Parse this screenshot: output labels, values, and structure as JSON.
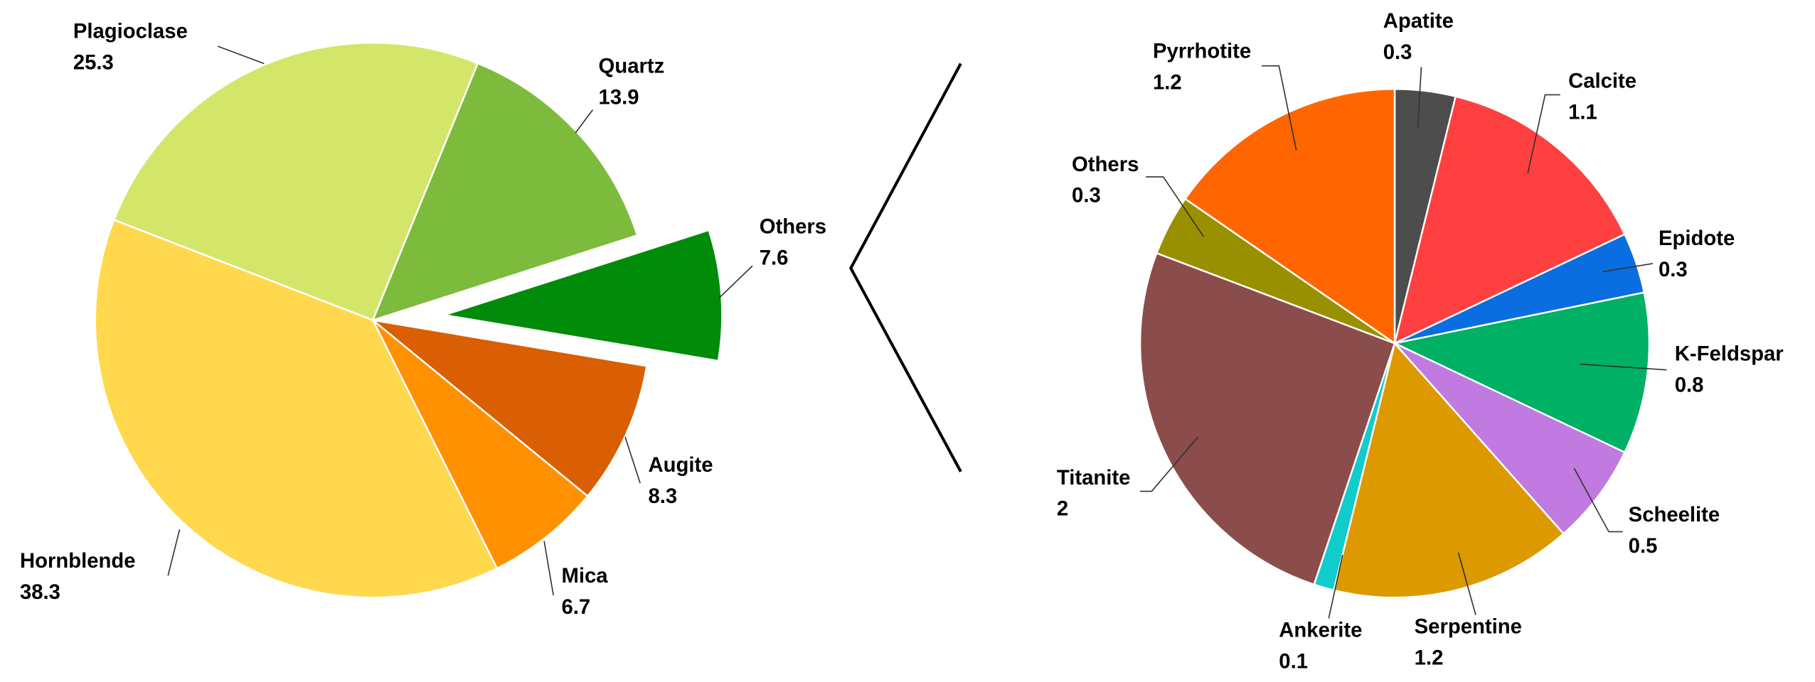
{
  "chart_data": [
    {
      "type": "pie",
      "categories": [
        "Plagioclase",
        "Quartz",
        "Others",
        "Augite",
        "Mica",
        "Hornblende"
      ],
      "values": [
        25.3,
        13.9,
        7.6,
        8.3,
        6.7,
        38.3
      ],
      "colors": [
        "#d4e66a",
        "#7dbb3c",
        "#008c0a",
        "#d95f02",
        "#ff9100",
        "#ffd84d"
      ]
    },
    {
      "type": "pie",
      "categories": [
        "Apatite",
        "Calcite",
        "Epidote",
        "K-Feldspar",
        "Scheelite",
        "Serpentine",
        "Ankerite",
        "Titanite",
        "Others",
        "Pyrrhotite"
      ],
      "values": [
        0.3,
        1.1,
        0.3,
        0.8,
        0.5,
        1.2,
        0.1,
        2,
        0.3,
        1.2
      ],
      "colors": [
        "#4d4d4d",
        "#ff4040",
        "#0a6ee0",
        "#00b064",
        "#c07ae0",
        "#dd9900",
        "#10cccc",
        "#8b4c4c",
        "#999000",
        "#ff6600"
      ]
    }
  ]
}
